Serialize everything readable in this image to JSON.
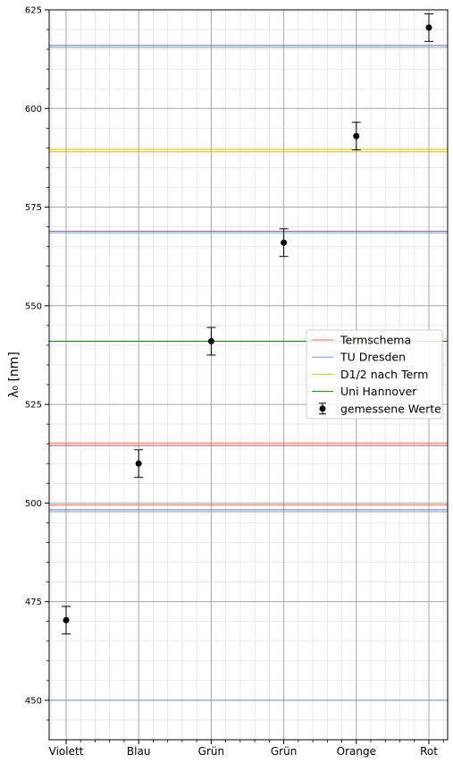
{
  "chart_data": {
    "type": "scatter",
    "ylabel": "λ₀ [nm]",
    "ylim": [
      440,
      625
    ],
    "yticks": [
      450,
      475,
      500,
      525,
      550,
      575,
      600,
      625
    ],
    "grid": true,
    "legend_position": "center-right",
    "categories": [
      "Violett",
      "Blau",
      "Grün",
      "Grün",
      "Orange",
      "Rot"
    ],
    "measured": {
      "name": "gemessene Werte",
      "color": "#000000",
      "values": [
        470.3,
        510.0,
        541.0,
        566.0,
        593.0,
        620.5
      ],
      "errors": [
        3.5,
        3.5,
        3.5,
        3.5,
        3.5,
        3.5
      ]
    },
    "reference_lines": [
      {
        "name": "Termschema",
        "color": "#e8735a",
        "values": [
          515.2,
          499.5
        ]
      },
      {
        "name": "TU Dresden",
        "color": "#7a9ccc",
        "values": [
          450.0,
          497.8,
          568.5,
          615.5
        ]
      },
      {
        "name": "D1/2 nach Term",
        "color": "#d4c400",
        "values": [
          589.0,
          589.6
        ]
      },
      {
        "name": "Uni Hannover",
        "color": "#1a7a1a",
        "values": [
          541.0
        ]
      }
    ],
    "extra_lines": [
      {
        "color": "#8a6aa0",
        "values": [
          498.3,
          568.9,
          616.0
        ]
      },
      {
        "color": "#b05050",
        "values": [
          514.6
        ]
      }
    ]
  }
}
